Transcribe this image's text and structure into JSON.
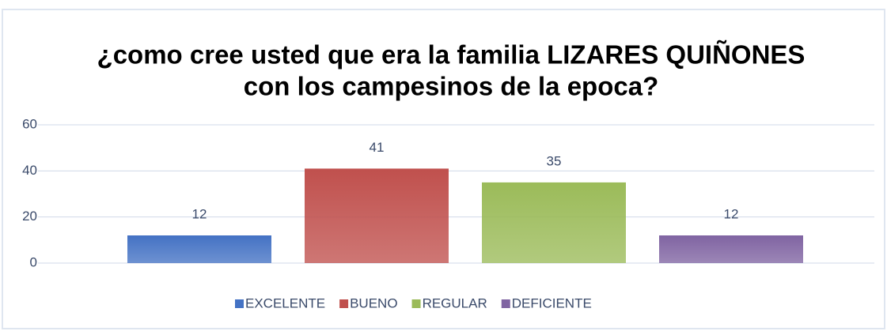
{
  "chart_data": {
    "type": "bar",
    "title": [
      "¿como cree usted que era la familia LIZARES QUIÑONES",
      "con los campesinos de la epoca?"
    ],
    "categories": [
      "EXCELENTE",
      "BUENO",
      "REGULAR",
      "DEFICIENTE"
    ],
    "values": [
      12,
      41,
      35,
      12
    ],
    "colors": [
      "#4472c4",
      "#c0504d",
      "#9bbb59",
      "#8064a2"
    ],
    "ylim": [
      0,
      60
    ],
    "yticks": [
      0,
      20,
      40,
      60
    ],
    "grid": true,
    "legend": "bottom"
  }
}
